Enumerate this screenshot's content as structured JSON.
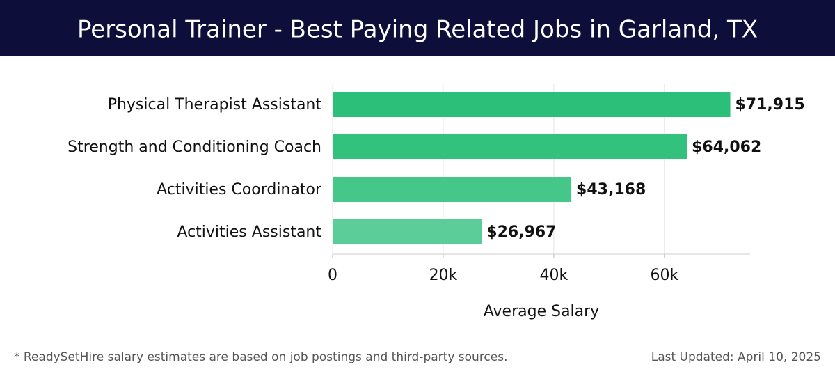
{
  "chart_data": {
    "type": "hbar",
    "title": "Personal Trainer - Best Paying Related Jobs in Garland, TX",
    "categories": [
      "Physical Therapist Assistant",
      "Strength and Conditioning Coach",
      "Activities Coordinator",
      "Activities Assistant"
    ],
    "values": [
      71915,
      64062,
      43168,
      26967
    ],
    "value_labels": [
      "$71,915",
      "$64,062",
      "$43,168",
      "$26,967"
    ],
    "colors": [
      "#2bbf79",
      "#33c17e",
      "#45c78a",
      "#5acd98"
    ],
    "xlim": [
      0,
      75500
    ],
    "xticks": [
      0,
      {
        "value": 20000,
        "label": "20k"
      },
      {
        "value": 40000,
        "label": "40k"
      },
      {
        "value": 60000,
        "label": "60k"
      }
    ],
    "xlabel": "Average Salary",
    "grid": true,
    "footnote": "* ReadySetHire salary estimates are based on job postings and third-party sources.",
    "updated": "Last Updated: April 10, 2025"
  }
}
